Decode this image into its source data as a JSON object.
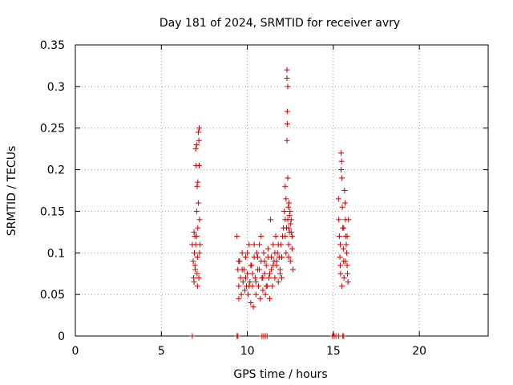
{
  "chart_data": {
    "type": "scatter",
    "title": "Day 181 of 2024, SRMTID for receiver avry",
    "xlabel": "GPS time / hours",
    "ylabel": "SRMTID / TECUs",
    "xlim": [
      0,
      24
    ],
    "ylim": [
      0,
      0.35
    ],
    "xticks": [
      0,
      5,
      10,
      15,
      20
    ],
    "yticks": [
      0,
      0.05,
      0.1,
      0.15,
      0.2,
      0.25,
      0.3,
      0.35
    ],
    "ytick_labels": [
      "0",
      "0.05",
      "0.1",
      "0.15",
      "0.2",
      "0.25",
      "0.3",
      "0.35"
    ],
    "grid": true,
    "marker": "+",
    "color": "#cc0000",
    "series": [
      {
        "name": "",
        "points": [
          [
            6.8,
            0.11
          ],
          [
            6.85,
            0.09
          ],
          [
            6.88,
            0.07
          ],
          [
            6.9,
            0.065
          ],
          [
            6.92,
            0.1
          ],
          [
            6.95,
            0.12
          ],
          [
            6.97,
            0.08
          ],
          [
            7.0,
            0.11
          ],
          [
            7.0,
            0.225
          ],
          [
            7.02,
            0.205
          ],
          [
            7.05,
            0.23
          ],
          [
            7.05,
            0.15
          ],
          [
            7.08,
            0.18
          ],
          [
            7.1,
            0.095
          ],
          [
            7.1,
            0.06
          ],
          [
            7.12,
            0.13
          ],
          [
            7.15,
            0.245
          ],
          [
            7.15,
            0.16
          ],
          [
            7.18,
            0.07
          ],
          [
            7.2,
            0.25
          ],
          [
            7.2,
            0.205
          ],
          [
            7.22,
            0.14
          ],
          [
            7.22,
            0.1
          ],
          [
            7.25,
            0.11
          ],
          [
            6.95,
            0.085
          ],
          [
            7.05,
            0.12
          ],
          [
            7.12,
            0.185
          ],
          [
            7.18,
            0.235
          ],
          [
            6.9,
            0.125
          ],
          [
            7.08,
            0.075
          ],
          [
            9.4,
            0.12
          ],
          [
            9.45,
            0.08
          ],
          [
            9.5,
            0.06
          ],
          [
            9.5,
            0.045
          ],
          [
            9.55,
            0.09
          ],
          [
            9.6,
            0.07
          ],
          [
            9.65,
            0.05
          ],
          [
            9.7,
            0.1
          ],
          [
            9.75,
            0.065
          ],
          [
            9.8,
            0.08
          ],
          [
            9.85,
            0.055
          ],
          [
            9.9,
            0.095
          ],
          [
            9.95,
            0.06
          ],
          [
            10.0,
            0.075
          ],
          [
            10.05,
            0.05
          ],
          [
            10.1,
            0.11
          ],
          [
            10.15,
            0.065
          ],
          [
            10.2,
            0.04
          ],
          [
            10.25,
            0.085
          ],
          [
            10.3,
            0.06
          ],
          [
            10.35,
            0.035
          ],
          [
            10.4,
            0.095
          ],
          [
            10.45,
            0.07
          ],
          [
            10.5,
            0.05
          ],
          [
            10.55,
            0.1
          ],
          [
            10.6,
            0.08
          ],
          [
            10.65,
            0.06
          ],
          [
            10.7,
            0.11
          ],
          [
            10.75,
            0.045
          ],
          [
            10.8,
            0.09
          ],
          [
            10.85,
            0.07
          ],
          [
            10.9,
            0.055
          ],
          [
            10.95,
            0.1
          ],
          [
            11.0,
            0.075
          ],
          [
            11.05,
            0.05
          ],
          [
            11.1,
            0.085
          ],
          [
            11.15,
            0.06
          ],
          [
            11.2,
            0.095
          ],
          [
            11.25,
            0.07
          ],
          [
            11.3,
            0.045
          ],
          [
            11.35,
            0.14
          ],
          [
            11.4,
            0.08
          ],
          [
            11.45,
            0.06
          ],
          [
            11.5,
            0.11
          ],
          [
            11.55,
            0.09
          ],
          [
            11.6,
            0.07
          ],
          [
            11.65,
            0.12
          ],
          [
            11.7,
            0.085
          ],
          [
            11.75,
            0.1
          ],
          [
            11.8,
            0.065
          ],
          [
            11.85,
            0.095
          ],
          [
            11.9,
            0.08
          ],
          [
            11.95,
            0.11
          ],
          [
            12.0,
            0.07
          ],
          [
            12.05,
            0.12
          ],
          [
            12.1,
            0.13
          ],
          [
            9.5,
            0.09
          ],
          [
            9.7,
            0.08
          ],
          [
            9.9,
            0.07
          ],
          [
            10.1,
            0.06
          ],
          [
            10.3,
            0.075
          ],
          [
            10.5,
            0.065
          ],
          [
            10.7,
            0.08
          ],
          [
            10.9,
            0.07
          ],
          [
            11.1,
            0.06
          ],
          [
            11.3,
            0.075
          ],
          [
            11.5,
            0.085
          ],
          [
            11.7,
            0.09
          ],
          [
            11.9,
            0.075
          ],
          [
            10.0,
            0.1
          ],
          [
            10.4,
            0.11
          ],
          [
            10.8,
            0.12
          ],
          [
            11.2,
            0.105
          ],
          [
            11.6,
            0.1
          ],
          [
            12.0,
            0.095
          ],
          [
            10.2,
            0.085
          ],
          [
            10.6,
            0.095
          ],
          [
            11.0,
            0.09
          ],
          [
            11.4,
            0.095
          ],
          [
            11.8,
            0.11
          ],
          [
            12.15,
            0.15
          ],
          [
            12.2,
            0.18
          ],
          [
            12.2,
            0.12
          ],
          [
            12.25,
            0.165
          ],
          [
            12.25,
            0.1
          ],
          [
            12.3,
            0.32
          ],
          [
            12.3,
            0.31
          ],
          [
            12.3,
            0.235
          ],
          [
            12.32,
            0.27
          ],
          [
            12.32,
            0.255
          ],
          [
            12.35,
            0.3
          ],
          [
            12.35,
            0.19
          ],
          [
            12.35,
            0.14
          ],
          [
            12.38,
            0.155
          ],
          [
            12.4,
            0.13
          ],
          [
            12.4,
            0.11
          ],
          [
            12.42,
            0.16
          ],
          [
            12.45,
            0.145
          ],
          [
            12.45,
            0.125
          ],
          [
            12.5,
            0.135
          ],
          [
            12.5,
            0.09
          ],
          [
            12.55,
            0.14
          ],
          [
            12.6,
            0.105
          ],
          [
            12.6,
            0.12
          ],
          [
            12.65,
            0.08
          ],
          [
            12.2,
            0.14
          ],
          [
            12.28,
            0.13
          ],
          [
            12.4,
            0.095
          ],
          [
            12.48,
            0.15
          ],
          [
            12.55,
            0.125
          ],
          [
            15.3,
            0.165
          ],
          [
            15.32,
            0.14
          ],
          [
            15.35,
            0.12
          ],
          [
            15.38,
            0.095
          ],
          [
            15.4,
            0.085
          ],
          [
            15.42,
            0.075
          ],
          [
            15.45,
            0.2
          ],
          [
            15.45,
            0.22
          ],
          [
            15.48,
            0.21
          ],
          [
            15.5,
            0.19
          ],
          [
            15.52,
            0.155
          ],
          [
            15.55,
            0.13
          ],
          [
            15.58,
            0.105
          ],
          [
            15.6,
            0.09
          ],
          [
            15.62,
            0.07
          ],
          [
            15.65,
            0.175
          ],
          [
            15.68,
            0.16
          ],
          [
            15.7,
            0.14
          ],
          [
            15.72,
            0.12
          ],
          [
            15.75,
            0.11
          ],
          [
            15.78,
            0.1
          ],
          [
            15.8,
            0.085
          ],
          [
            15.82,
            0.075
          ],
          [
            15.85,
            0.065
          ],
          [
            15.88,
            0.14
          ],
          [
            15.6,
            0.13
          ],
          [
            15.4,
            0.11
          ],
          [
            15.7,
            0.09
          ],
          [
            15.5,
            0.06
          ],
          [
            15.8,
            0.12
          ]
        ]
      },
      {
        "name": "",
        "points": [
          [
            6.8,
            0
          ],
          [
            9.4,
            0
          ],
          [
            9.45,
            0
          ],
          [
            10.85,
            0
          ],
          [
            10.95,
            0
          ],
          [
            11.05,
            0
          ],
          [
            11.15,
            0
          ],
          [
            14.95,
            0
          ],
          [
            15.05,
            0
          ],
          [
            15.15,
            0
          ],
          [
            15.3,
            0
          ],
          [
            15.55,
            0
          ],
          [
            15.6,
            0
          ]
        ]
      }
    ]
  }
}
